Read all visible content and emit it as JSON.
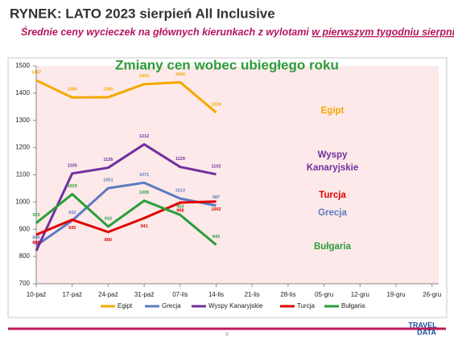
{
  "slide": {
    "title": "RYNEK: LATO 2023 sierpień All Inclusive",
    "subtitle": "Średnie ceny wycieczek na głównych kierunkach z wylotami ",
    "subtitle_underlined": "w pierwszym tygodniu sierpnia",
    "page": "9",
    "logo_top": "TRAVEL",
    "logo_bottom": "DATA"
  },
  "chart_data": {
    "type": "line",
    "title": "Zmiany cen wobec ubiegłego roku",
    "categories": [
      "10-paź",
      "17-paź",
      "24-paź",
      "31-paź",
      "07-lis",
      "14-lis",
      "21-lis",
      "28-lis",
      "05-gru",
      "12-gru",
      "19-gru",
      "26-gru"
    ],
    "ylim": [
      700,
      1500
    ],
    "yticks": [
      700,
      800,
      900,
      1000,
      1100,
      1200,
      1300,
      1400,
      1500
    ],
    "grid": false,
    "legend": "bottom",
    "series": [
      {
        "name": "Egipt",
        "color": "#f5a800",
        "values": [
          1447,
          1384,
          1385,
          1433,
          1440,
          1329,
          null,
          null,
          null,
          null,
          null,
          null
        ]
      },
      {
        "name": "Grecja",
        "color": "#5b7bbf",
        "values": [
          840,
          932,
          1051,
          1071,
          1013,
          987,
          null,
          null,
          null,
          null,
          null,
          null
        ]
      },
      {
        "name": "Wyspy Kanaryjskie",
        "color": "#7030a0",
        "values": [
          821,
          1105,
          1126,
          1212,
          1129,
          1102,
          null,
          null,
          null,
          null,
          null,
          null
        ]
      },
      {
        "name": "Turcja",
        "color": "#e00000",
        "values": [
          880,
          935,
          890,
          941,
          998,
          1002,
          null,
          null,
          null,
          null,
          null,
          null
        ]
      },
      {
        "name": "Bułgaria",
        "color": "#2a9d3a",
        "values": [
          923,
          1029,
          910,
          1005,
          953,
          843,
          null,
          null,
          null,
          null,
          null,
          null
        ]
      }
    ],
    "annotations": [
      {
        "lines": [
          "Egipt"
        ],
        "color": "#f5a800"
      },
      {
        "lines": [
          "Wyspy",
          "Kanaryjskie"
        ],
        "color": "#7030a0"
      },
      {
        "lines": [
          "Turcja"
        ],
        "color": "#e00000"
      },
      {
        "lines": [
          "Grecja"
        ],
        "color": "#5b7bbf"
      },
      {
        "lines": [
          "Bułgaria"
        ],
        "color": "#2a9d3a"
      }
    ]
  }
}
